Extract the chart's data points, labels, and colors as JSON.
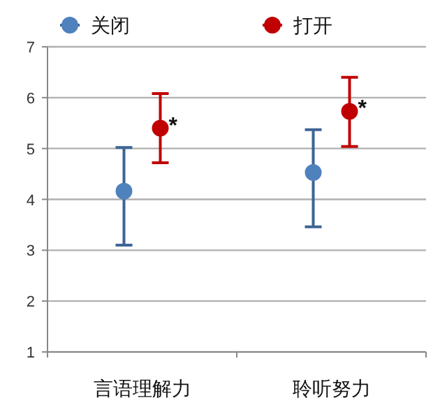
{
  "chart_data": {
    "type": "scatter",
    "categories": [
      "言语理解力",
      "聆听努力"
    ],
    "series": [
      {
        "name": "关闭",
        "color": "#4f81bd",
        "values": [
          4.16,
          4.53
        ],
        "errors": [
          [
            3.1,
            5.02
          ],
          [
            3.46,
            5.37
          ]
        ]
      },
      {
        "name": "打开",
        "color": "#c00000",
        "values": [
          5.4,
          5.73
        ],
        "errors": [
          [
            4.72,
            6.08
          ],
          [
            5.04,
            6.4
          ]
        ]
      }
    ],
    "ylim": [
      1,
      7
    ],
    "yticks": [
      1,
      2,
      3,
      4,
      5,
      6,
      7
    ],
    "grid": "y",
    "legend": "top",
    "marker": "circle",
    "annotations": [
      "*",
      "*"
    ]
  }
}
